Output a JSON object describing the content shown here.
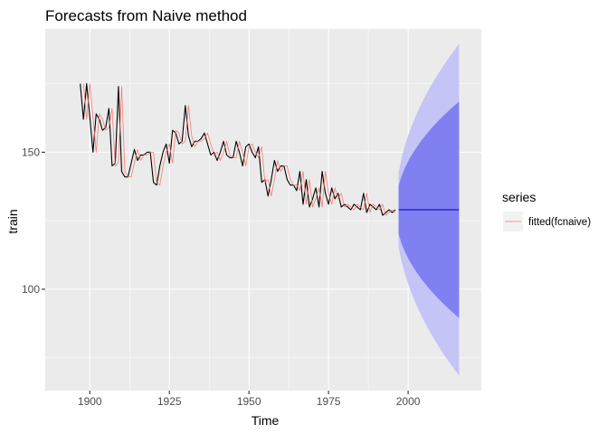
{
  "chart_data": {
    "type": "line",
    "title": "Forecasts from Naive method",
    "xlabel": "Time",
    "ylabel": "train",
    "xlim": [
      1886,
      2023
    ],
    "ylim": [
      63,
      195
    ],
    "x_ticks": [
      1900,
      1925,
      1950,
      1975,
      2000
    ],
    "y_ticks": [
      100,
      150
    ],
    "x_tick_labels": [
      "1900",
      "1925",
      "1950",
      "1975",
      "2000"
    ],
    "y_tick_labels": [
      "100",
      "150"
    ],
    "legend": {
      "title": "series",
      "entries": [
        "fitted(fcnaive)"
      ],
      "position": "right"
    },
    "colors": {
      "panel": "#ebebeb",
      "grid": "#ffffff",
      "series": "#000000",
      "fitted": "#f8766d",
      "pi80": "#8080f0",
      "pi95": "#c4c4f7",
      "forecast": "#0000cc"
    },
    "series": [
      {
        "name": "train",
        "x_start": 1897,
        "values": [
          175,
          162,
          175,
          163,
          150,
          164,
          162,
          158,
          159,
          166,
          145,
          146,
          174,
          143,
          141,
          141,
          146,
          151,
          147,
          149,
          149,
          150,
          150,
          139,
          138,
          145,
          150,
          153,
          146,
          158,
          157,
          153,
          154,
          167,
          156,
          152,
          154,
          154,
          155,
          157,
          153,
          149,
          150,
          147,
          150,
          154,
          149,
          148,
          148,
          154,
          150,
          145,
          152,
          153,
          150,
          148,
          152,
          139,
          140,
          134,
          140,
          147,
          143,
          145,
          145,
          140,
          138,
          138,
          136,
          143,
          131,
          140,
          130,
          133,
          137,
          130,
          143,
          135,
          131,
          137,
          133,
          135,
          130,
          131,
          130,
          129,
          131,
          130,
          129,
          135,
          128,
          131,
          130,
          129,
          131,
          127,
          128,
          129,
          128,
          129
        ]
      },
      {
        "name": "fitted(fcnaive)",
        "x_start": 1898,
        "values": [
          175,
          162,
          175,
          163,
          150,
          164,
          162,
          158,
          159,
          166,
          145,
          146,
          174,
          143,
          141,
          141,
          146,
          151,
          147,
          149,
          149,
          150,
          150,
          139,
          138,
          145,
          150,
          153,
          146,
          158,
          157,
          153,
          154,
          167,
          156,
          152,
          154,
          154,
          155,
          157,
          153,
          149,
          150,
          147,
          150,
          154,
          149,
          148,
          148,
          154,
          150,
          145,
          152,
          153,
          150,
          148,
          152,
          139,
          140,
          134,
          140,
          147,
          143,
          145,
          145,
          140,
          138,
          138,
          136,
          143,
          131,
          140,
          130,
          133,
          137,
          130,
          143,
          135,
          131,
          137,
          133,
          135,
          130,
          131,
          130,
          129,
          131,
          130,
          129,
          135,
          128,
          131,
          130,
          129,
          131,
          127,
          128,
          129,
          128
        ]
      }
    ],
    "forecast": {
      "start": 1997,
      "end": 2016,
      "point": 129,
      "lower80_end": 89.5,
      "upper80_end": 168.5,
      "lower95_end": 68.5,
      "upper95_end": 189.5
    }
  }
}
